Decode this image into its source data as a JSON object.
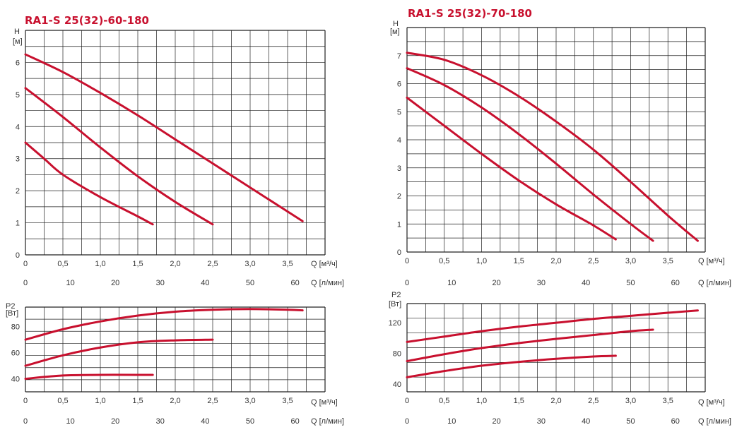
{
  "colors": {
    "curve": "#c8102e",
    "grid": "#222222",
    "title": "#c8102e"
  },
  "charts": [
    {
      "id": "left-head",
      "title": "RA1-S 25(32)-60-180",
      "y_label_top": "H",
      "y_label_unit": "[м]",
      "x_label": "Q [м³/ч]",
      "x2_label": "Q [л/мин]",
      "y_ticks": [
        "0",
        "1",
        "2",
        "3",
        "4",
        "5",
        "6"
      ],
      "x_ticks": [
        "0",
        "0,5",
        "1,0",
        "1,5",
        "2,0",
        "2,5",
        "3,0",
        "3,5"
      ],
      "x2_ticks": [
        "0",
        "10",
        "20",
        "30",
        "40",
        "50",
        "60"
      ]
    },
    {
      "id": "left-power",
      "title": "",
      "y_label_top": "P2",
      "y_label_unit": "[Вт]",
      "x_label": "Q [м³/ч]",
      "x2_label": "Q [л/мин]",
      "y_ticks": [
        "40",
        "60",
        "80"
      ],
      "x_ticks": [
        "0",
        "0,5",
        "1,0",
        "1,5",
        "2,0",
        "2,5",
        "3,0",
        "3,5"
      ],
      "x2_ticks": [
        "0",
        "10",
        "20",
        "30",
        "40",
        "50",
        "60"
      ]
    },
    {
      "id": "right-head",
      "title": "RA1-S 25(32)-70-180",
      "y_label_top": "H",
      "y_label_unit": "[м]",
      "x_label": "Q [м³/ч]",
      "x2_label": "Q [л/мин]",
      "y_ticks": [
        "0",
        "1",
        "2",
        "3",
        "4",
        "5",
        "6",
        "7"
      ],
      "x_ticks": [
        "0",
        "0,5",
        "1,0",
        "1,5",
        "2,0",
        "2,5",
        "3,0",
        "3,5"
      ],
      "x2_ticks": [
        "0",
        "10",
        "20",
        "30",
        "40",
        "50",
        "60"
      ]
    },
    {
      "id": "right-power",
      "title": "",
      "y_label_top": "P2",
      "y_label_unit": "[Вт]",
      "x_label": "Q [м³/ч]",
      "x2_label": "Q [л/мин]",
      "y_ticks": [
        "40",
        "80",
        "120"
      ],
      "x_ticks": [
        "0",
        "0,5",
        "1,0",
        "1,5",
        "2,0",
        "2,5",
        "3,0",
        "3,5"
      ],
      "x2_ticks": [
        "0",
        "10",
        "20",
        "30",
        "40",
        "50",
        "60"
      ]
    }
  ],
  "chart_data": [
    {
      "type": "line",
      "title": "RA1-S 25(32)-60-180",
      "xlabel": "Q [м³/ч]",
      "ylabel": "H [м]",
      "xlim": [
        0,
        4.0
      ],
      "ylim": [
        0,
        7
      ],
      "grid": true,
      "series": [
        {
          "x": [
            0,
            0.5,
            1.0,
            1.5,
            2.0,
            2.5,
            3.0,
            3.5,
            3.7
          ],
          "y": [
            6.25,
            5.7,
            5.05,
            4.35,
            3.6,
            2.85,
            2.1,
            1.35,
            1.05
          ]
        },
        {
          "x": [
            0,
            0.5,
            1.0,
            1.5,
            2.0,
            2.5
          ],
          "y": [
            5.2,
            4.3,
            3.35,
            2.45,
            1.65,
            0.95
          ]
        },
        {
          "x": [
            0,
            0.25,
            0.5,
            1.0,
            1.5,
            1.7
          ],
          "y": [
            3.5,
            3.0,
            2.5,
            1.8,
            1.2,
            0.95
          ]
        }
      ]
    },
    {
      "type": "line",
      "xlabel": "Q [м³/ч]",
      "ylabel": "P2 [Вт]",
      "xlim": [
        0,
        4.0
      ],
      "ylim": [
        30,
        95
      ],
      "grid": true,
      "series": [
        {
          "x": [
            0,
            0.5,
            1.0,
            1.5,
            2.0,
            2.5,
            3.0,
            3.5,
            3.7
          ],
          "y": [
            70,
            78,
            84,
            88.5,
            91.5,
            93,
            93.5,
            93,
            92.5
          ]
        },
        {
          "x": [
            0,
            0.5,
            1.0,
            1.5,
            2.0,
            2.5
          ],
          "y": [
            50,
            58,
            64,
            68,
            69.5,
            70
          ]
        },
        {
          "x": [
            0,
            0.5,
            1.0,
            1.5,
            1.7
          ],
          "y": [
            40,
            42.5,
            43,
            43,
            43
          ]
        }
      ]
    },
    {
      "type": "line",
      "title": "RA1-S 25(32)-70-180",
      "xlabel": "Q [м³/ч]",
      "ylabel": "H [м]",
      "xlim": [
        0,
        4.0
      ],
      "ylim": [
        0,
        8
      ],
      "grid": true,
      "series": [
        {
          "x": [
            0,
            0.5,
            1.0,
            1.5,
            2.0,
            2.5,
            3.0,
            3.5,
            3.9
          ],
          "y": [
            7.1,
            6.85,
            6.3,
            5.55,
            4.65,
            3.65,
            2.5,
            1.3,
            0.4
          ]
        },
        {
          "x": [
            0,
            0.5,
            1.0,
            1.5,
            2.0,
            2.5,
            3.0,
            3.3
          ],
          "y": [
            6.55,
            5.95,
            5.15,
            4.2,
            3.15,
            2.05,
            1.0,
            0.4
          ]
        },
        {
          "x": [
            0,
            0.5,
            1.0,
            1.5,
            2.0,
            2.5,
            2.8
          ],
          "y": [
            5.5,
            4.5,
            3.5,
            2.55,
            1.7,
            0.95,
            0.45
          ]
        }
      ]
    },
    {
      "type": "line",
      "xlabel": "Q [м³/ч]",
      "ylabel": "P2 [Вт]",
      "xlim": [
        0,
        4.0
      ],
      "ylim": [
        30,
        145
      ],
      "grid": true,
      "series": [
        {
          "x": [
            0,
            0.5,
            1.0,
            1.5,
            2.0,
            2.5,
            3.0,
            3.5,
            3.9
          ],
          "y": [
            95,
            102,
            109,
            115,
            120,
            125,
            129,
            133,
            136
          ]
        },
        {
          "x": [
            0,
            0.5,
            1.0,
            1.5,
            2.0,
            2.5,
            3.0,
            3.3
          ],
          "y": [
            70,
            79,
            87,
            93.5,
            99,
            104,
            109,
            111
          ]
        },
        {
          "x": [
            0,
            0.5,
            1.0,
            1.5,
            2.0,
            2.5,
            2.8
          ],
          "y": [
            49,
            57,
            64,
            69,
            73,
            76,
            77
          ]
        }
      ]
    }
  ]
}
